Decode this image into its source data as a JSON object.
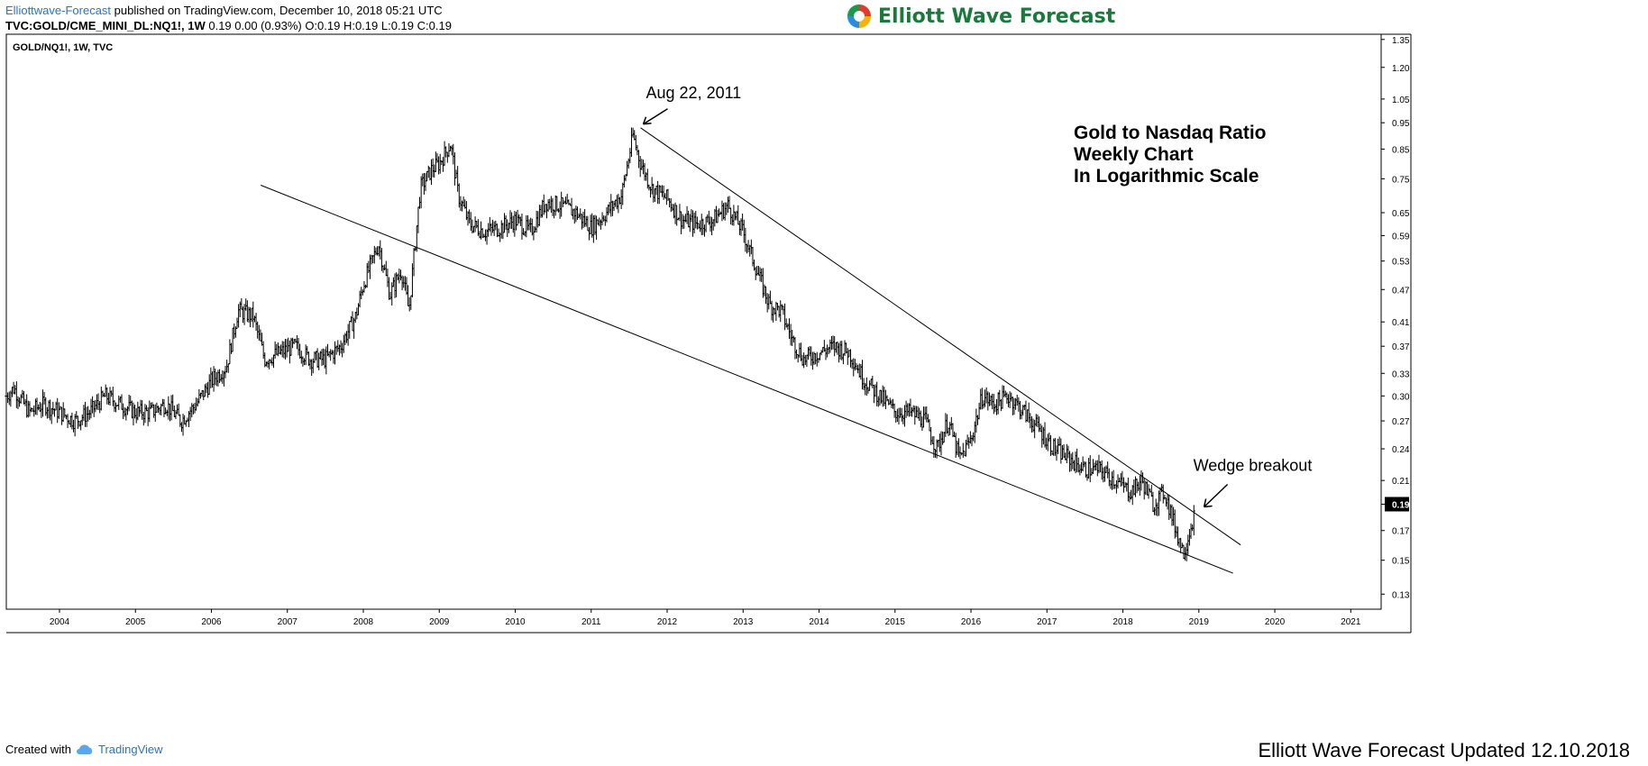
{
  "header": {
    "publisher": "Elliottwave-Forecast",
    "published_text": "published on TradingView.com, December 10, 2018 05:21 UTC",
    "symbol_line": "TVC:GOLD/CME_MINI_DL:NQ1!, 1W",
    "values_line": "0.19 0.00 (0.93%) O:0.19 H:0.19 L:0.19 C:0.19"
  },
  "brand": {
    "name": "Elliott Wave Forecast"
  },
  "footer": {
    "created_with": "Created with",
    "tradingview": "TradingView",
    "updated": "Elliott Wave Forecast Updated 12.10.2018"
  },
  "colors": {
    "brand_green": "#1a7a3c",
    "link_blue": "#2a74c2",
    "candle": "#000000"
  },
  "chart_data": {
    "type": "line",
    "style": "ohlc-bars",
    "symbol_label": "GOLD/NQ1!, 1W, TVC",
    "title_lines": [
      "Gold to Nasdaq Ratio",
      "Weekly Chart",
      "In Logarithmic Scale"
    ],
    "scale": "log",
    "x_tick_labels": [
      "2004",
      "2005",
      "2006",
      "2007",
      "2008",
      "2009",
      "2010",
      "2011",
      "2012",
      "2013",
      "2014",
      "2015",
      "2016",
      "2017",
      "2018",
      "2019",
      "2020",
      "2021"
    ],
    "y_tick_labels": [
      1.35,
      1.2,
      1.05,
      0.95,
      0.85,
      0.75,
      0.65,
      0.59,
      0.53,
      0.47,
      0.41,
      0.37,
      0.33,
      0.3,
      0.27,
      0.24,
      0.21,
      0.19,
      0.17,
      0.15,
      0.13
    ],
    "xlim": [
      2003.3,
      2021.4
    ],
    "ylim": [
      0.122,
      1.38
    ],
    "last_price": "0.19",
    "series": [
      {
        "x": [
          2003.3,
          2003.4,
          2003.6,
          2003.8,
          2004.0,
          2004.2,
          2004.4,
          2004.6,
          2004.8,
          2005.0,
          2005.2,
          2005.4,
          2005.6,
          2005.8,
          2006.0,
          2006.2,
          2006.35,
          2006.55,
          2006.7,
          2006.9,
          2007.1,
          2007.3,
          2007.5,
          2007.7,
          2007.9,
          2008.0,
          2008.2,
          2008.35,
          2008.5,
          2008.6,
          2008.75,
          2008.9,
          2009.0,
          2009.15,
          2009.25,
          2009.4,
          2009.6,
          2009.8,
          2010.0,
          2010.2,
          2010.4,
          2010.6,
          2010.8,
          2011.0,
          2011.2,
          2011.4,
          2011.55,
          2011.65,
          2011.8,
          2012.0,
          2012.2,
          2012.4,
          2012.6,
          2012.8,
          2013.0,
          2013.2,
          2013.35,
          2013.5,
          2013.65,
          2013.8,
          2014.0,
          2014.2,
          2014.4,
          2014.6,
          2014.8,
          2015.0,
          2015.2,
          2015.4,
          2015.55,
          2015.7,
          2015.85,
          2016.0,
          2016.15,
          2016.3,
          2016.5,
          2016.7,
          2016.9,
          2017.1,
          2017.3,
          2017.5,
          2017.7,
          2017.9,
          2018.1,
          2018.25,
          2018.4,
          2018.55,
          2018.7,
          2018.8,
          2018.95
        ],
        "y": [
          0.3,
          0.31,
          0.28,
          0.29,
          0.28,
          0.27,
          0.28,
          0.3,
          0.29,
          0.28,
          0.28,
          0.29,
          0.27,
          0.29,
          0.32,
          0.34,
          0.43,
          0.42,
          0.35,
          0.36,
          0.37,
          0.35,
          0.35,
          0.37,
          0.42,
          0.48,
          0.57,
          0.46,
          0.51,
          0.43,
          0.72,
          0.78,
          0.8,
          0.87,
          0.7,
          0.62,
          0.6,
          0.61,
          0.63,
          0.6,
          0.68,
          0.67,
          0.65,
          0.61,
          0.65,
          0.7,
          0.9,
          0.8,
          0.72,
          0.69,
          0.63,
          0.62,
          0.63,
          0.67,
          0.6,
          0.5,
          0.44,
          0.43,
          0.38,
          0.35,
          0.36,
          0.37,
          0.36,
          0.32,
          0.3,
          0.28,
          0.28,
          0.27,
          0.24,
          0.27,
          0.23,
          0.25,
          0.3,
          0.29,
          0.3,
          0.28,
          0.26,
          0.24,
          0.23,
          0.22,
          0.22,
          0.21,
          0.2,
          0.21,
          0.19,
          0.2,
          0.17,
          0.155,
          0.185
        ]
      }
    ],
    "trendlines": [
      {
        "name": "upper",
        "from": [
          2011.65,
          0.93
        ],
        "to": [
          2019.55,
          0.16
        ]
      },
      {
        "name": "lower",
        "from": [
          2006.65,
          0.73
        ],
        "to": [
          2019.45,
          0.142
        ]
      }
    ],
    "annotations": [
      {
        "text": "Aug 22, 2011",
        "x": 2011.65,
        "y": 0.93
      },
      {
        "text": "Wedge breakout",
        "x": 2018.95,
        "y": 0.19
      }
    ]
  }
}
